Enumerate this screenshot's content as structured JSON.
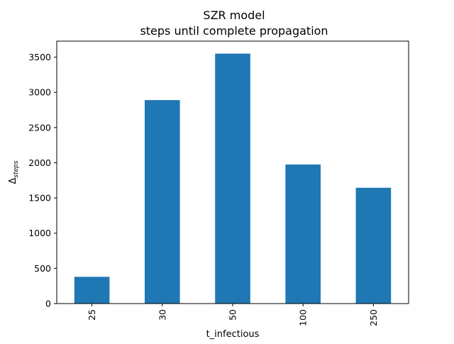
{
  "chart_data": {
    "type": "bar",
    "title": "SZR model",
    "subtitle": "steps until complete propagation",
    "xlabel": "t_infectious",
    "ylabel": "Δ",
    "ylabel_subscript": "steps",
    "categories": [
      "25",
      "30",
      "50",
      "100",
      "250"
    ],
    "values": [
      380,
      2890,
      3550,
      1975,
      1645
    ],
    "ylim": [
      0,
      3727.5
    ],
    "yticks": [
      0,
      500,
      1000,
      1500,
      2000,
      2500,
      3000,
      3500
    ],
    "grid": false,
    "legend": "none",
    "bar_color": "#1f77b4"
  }
}
